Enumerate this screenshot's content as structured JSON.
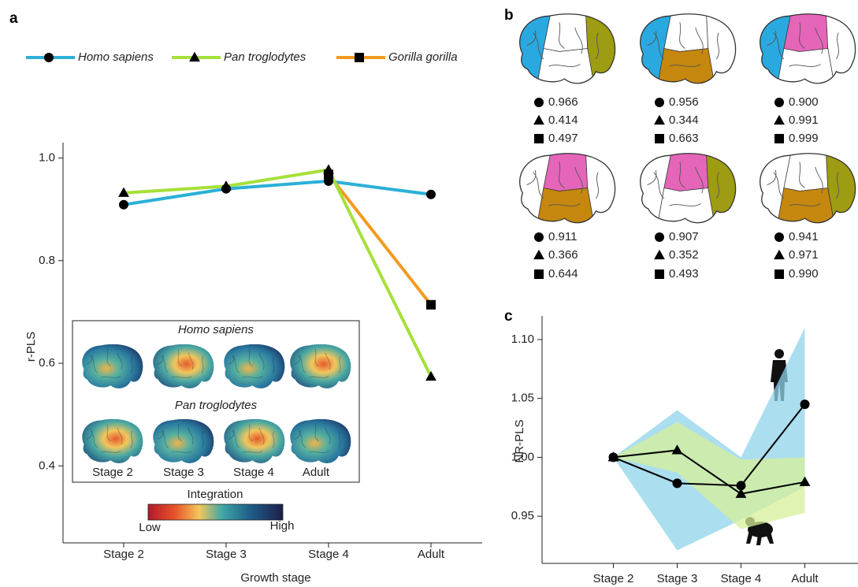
{
  "chart_data": [
    {
      "panel": "a",
      "type": "line",
      "legend": "top",
      "categories": [
        "Stage 2",
        "Stage 3",
        "Stage 4",
        "Adult"
      ],
      "xlabel": "Growth stage",
      "ylabel": "r-PLS",
      "ylim": [
        0.25,
        1.03
      ],
      "yticks": [
        0.4,
        0.6,
        0.8,
        {
          "value": 1,
          "label": "1.0"
        }
      ],
      "series": [
        {
          "name": "Homo sapiens",
          "color": "#2bb0d8",
          "marker": "circle",
          "values": [
            0.909,
            0.94,
            0.955,
            0.929
          ]
        },
        {
          "name": "Pan troglodytes",
          "color": "#a6e03a",
          "marker": "triangle",
          "values": [
            0.932,
            0.945,
            0.977,
            0.574
          ]
        },
        {
          "name": "Gorilla gorilla",
          "color": "#f39a1f",
          "marker": "square",
          "values": [
            null,
            null,
            0.968,
            0.714
          ]
        }
      ],
      "inset": {
        "rows": [
          "Homo sapiens",
          "Pan troglodytes"
        ],
        "columns": [
          "Stage 2",
          "Stage 3",
          "Stage 4",
          "Adult"
        ],
        "colorbar": {
          "title": "Integration",
          "low": "Low",
          "high": "High"
        }
      }
    },
    {
      "panel": "b",
      "type": "grid",
      "markers": [
        "circle",
        "triangle",
        "square"
      ],
      "items": [
        {
          "fills": [
            "#2aa9e0",
            "#ffffff",
            "#9e9c12",
            "#ffffff"
          ],
          "values": [
            0.966,
            0.414,
            0.497
          ]
        },
        {
          "fills": [
            "#2aa9e0",
            "#ffffff",
            "#ffffff",
            "#c5870e"
          ],
          "values": [
            0.956,
            0.344,
            0.663
          ]
        },
        {
          "fills": [
            "#2aa9e0",
            "#e565b9",
            "#ffffff",
            "#ffffff"
          ],
          "values": [
            0.9,
            0.991,
            0.999
          ],
          "value_labels": [
            "0.900",
            "0.991",
            "0.999"
          ]
        },
        {
          "fills": [
            "#ffffff",
            "#e565b9",
            "#ffffff",
            "#c5870e"
          ],
          "values": [
            0.911,
            0.366,
            0.644
          ]
        },
        {
          "fills": [
            "#ffffff",
            "#e565b9",
            "#9e9c12",
            "#ffffff"
          ],
          "values": [
            0.907,
            0.352,
            0.493
          ]
        },
        {
          "fills": [
            "#ffffff",
            "#ffffff",
            "#9e9c12",
            "#c5870e"
          ],
          "values": [
            0.941,
            0.971,
            0.99
          ],
          "value_labels": [
            "0.941",
            "0.971",
            "0.990"
          ]
        }
      ]
    },
    {
      "panel": "c",
      "type": "band-line",
      "categories": [
        "Stage 2",
        "Stage 3",
        "Stage 4",
        "Adult"
      ],
      "ylabel": "NR-PLS",
      "ylim": [
        0.91,
        1.12
      ],
      "yticks": [
        0.95,
        {
          "value": 1,
          "label": "1.00"
        },
        1.05,
        {
          "value": 1.1,
          "label": "1.10"
        }
      ],
      "series": [
        {
          "marker": "circle",
          "color": "#000000",
          "band_color": "#8fd3ea",
          "values": [
            1,
            0.978,
            0.976,
            1.045
          ],
          "lower": [
            1,
            0.921,
            0.947,
            0.975
          ],
          "upper": [
            1,
            1.04,
            1,
            1.11
          ]
        },
        {
          "marker": "triangle",
          "color": "#000000",
          "band_color": "#d6ef9a",
          "values": [
            1,
            1.006,
            0.969,
            0.979
          ],
          "lower": [
            1,
            0.987,
            0.939,
            0.953
          ],
          "upper": [
            1,
            1.03,
            0.998,
            1
          ]
        }
      ]
    }
  ]
}
